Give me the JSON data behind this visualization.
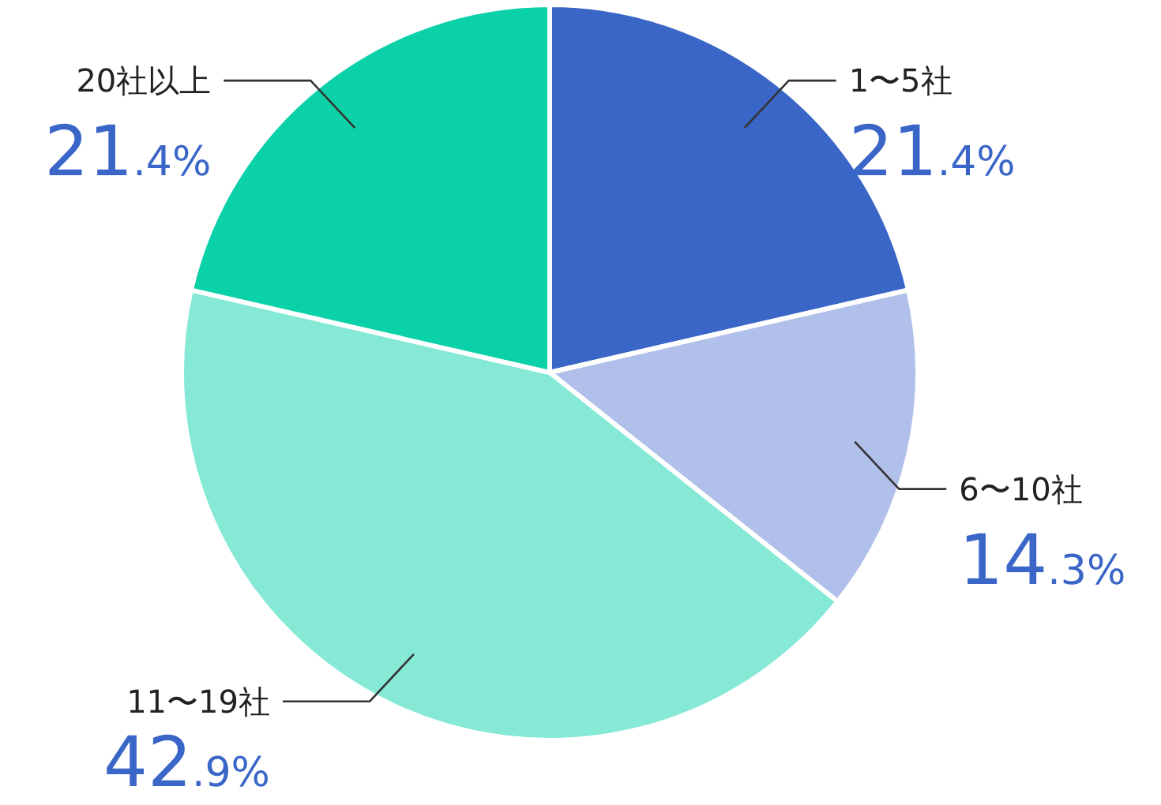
{
  "chart_data": {
    "type": "pie",
    "categories": [
      "1〜5社",
      "6〜10社",
      "11〜19社",
      "20社以上"
    ],
    "values": [
      21.4,
      14.3,
      42.9,
      21.4
    ],
    "colors": [
      "#3a66c8",
      "#b0c0ea",
      "#86e9d6",
      "#0bd1a8"
    ],
    "value_labels": [
      "21.4%",
      "14.3%",
      "42.9%",
      "21.4%"
    ]
  }
}
